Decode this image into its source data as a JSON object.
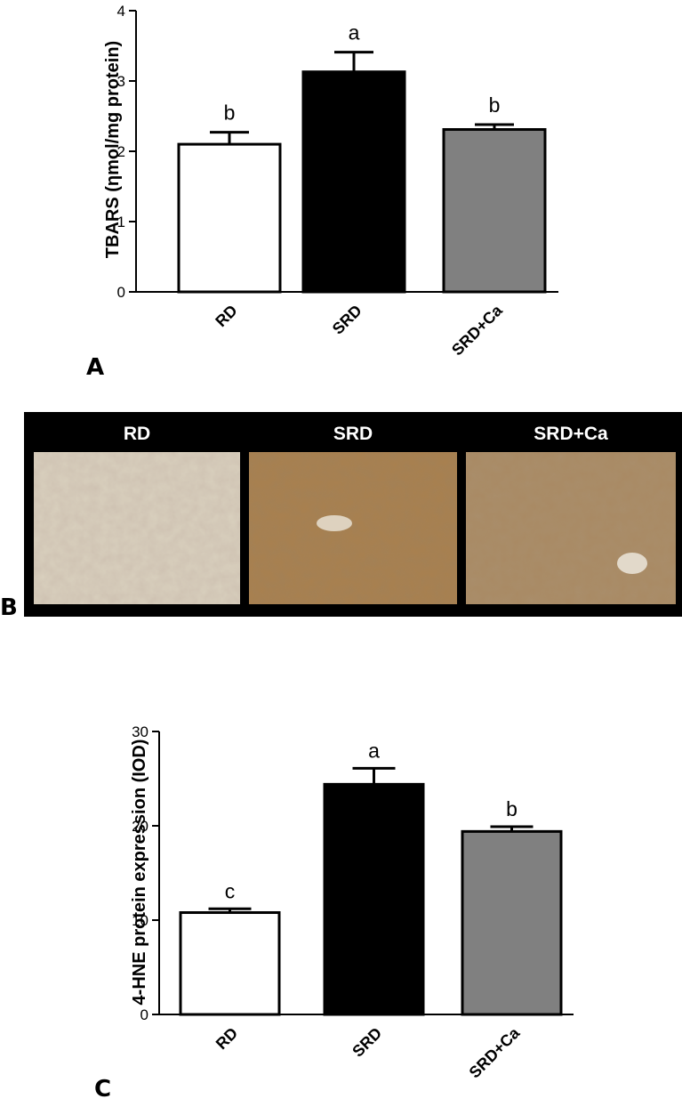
{
  "chart_data": [
    {
      "type": "bar",
      "panel": "A",
      "ylabel": "TBARS (ηmol/mg protein)",
      "xlabel": "",
      "categories": [
        "RD",
        "SRD",
        "SRD+Ca"
      ],
      "values": [
        2.1,
        3.13,
        2.31
      ],
      "errors": [
        0.17,
        0.28,
        0.07
      ],
      "significance": [
        "b",
        "a",
        "b"
      ],
      "bar_colors": [
        "#ffffff",
        "#000000",
        "#808080"
      ],
      "ylim": [
        0,
        4
      ],
      "yticks": [
        0,
        1,
        2,
        3,
        4
      ],
      "ytick_labels": [
        "0",
        "1",
        "2",
        "3",
        "4"
      ],
      "grid": false
    },
    {
      "type": "bar",
      "panel": "C",
      "ylabel": "4-HNE protein expression (IOD)",
      "xlabel": "",
      "categories": [
        "RD",
        "SRD",
        "SRD+Ca"
      ],
      "values": [
        10.8,
        24.4,
        19.4
      ],
      "errors": [
        0.4,
        1.7,
        0.5
      ],
      "significance": [
        "c",
        "a",
        "b"
      ],
      "bar_colors": [
        "#ffffff",
        "#000000",
        "#808080"
      ],
      "ylim": [
        0,
        30
      ],
      "yticks": [
        0,
        10,
        20,
        30
      ],
      "ytick_labels": [
        "0",
        "10",
        "20",
        "30"
      ],
      "grid": false
    }
  ],
  "micrographs": {
    "panel": "B",
    "labels": [
      "RD",
      "SRD",
      "SRD+Ca"
    ],
    "tissue_colors": [
      "#d8cfbd",
      "#a8804f",
      "#a98a64"
    ]
  }
}
